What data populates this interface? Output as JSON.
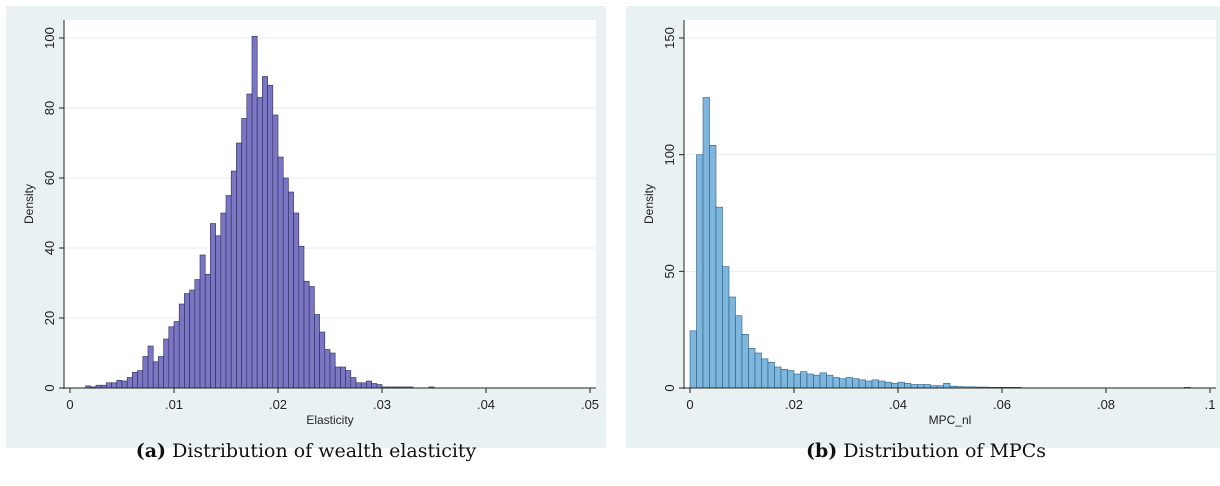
{
  "charts": [
    {
      "caption_label": "(a)",
      "caption_text": "Distribution of wealth elasticity",
      "bar_color": "#7b76c2",
      "bar_stroke": "#2c2a5c"
    },
    {
      "caption_label": "(b)",
      "caption_text": "Distribution of MPCs",
      "bar_color": "#7eb6de",
      "bar_stroke": "#2b5e80"
    }
  ],
  "chart_data": [
    {
      "type": "bar",
      "title": "",
      "xlabel": "Elasticity",
      "ylabel": "Density",
      "xlim": [
        0,
        0.05
      ],
      "ylim": [
        0,
        100
      ],
      "xticks": [
        0,
        0.01,
        0.02,
        0.03,
        0.04,
        0.05
      ],
      "xtick_labels": [
        "0",
        ".01",
        ".02",
        ".03",
        ".04",
        ".05"
      ],
      "yticks": [
        0,
        20,
        40,
        60,
        80,
        100
      ],
      "ytick_labels": [
        "0",
        "20",
        "40",
        "60",
        "80",
        "100"
      ],
      "grid": true,
      "bin_start": 0.0015,
      "bin_width": 0.0005,
      "values": [
        0.6,
        0.3,
        0.8,
        0.8,
        1.5,
        1.5,
        2.2,
        2.0,
        3.0,
        4.5,
        5.0,
        9.0,
        12.0,
        7.5,
        9.0,
        14.0,
        17.5,
        19.0,
        24.0,
        27.0,
        28.0,
        31.0,
        38.0,
        32.5,
        47.0,
        43.5,
        50.0,
        55.0,
        62.0,
        70.0,
        77.0,
        84.0,
        100.5,
        83.0,
        89.0,
        86.5,
        78.0,
        66.0,
        60.0,
        56.0,
        50.0,
        40.5,
        30.5,
        29.0,
        21.0,
        16.0,
        11.0,
        10.0,
        6.0,
        6.0,
        5.0,
        3.0,
        1.5,
        1.5,
        2.0,
        1.3,
        1.0,
        0.3,
        0.3,
        0.3,
        0.3,
        0.3,
        0.3,
        0,
        0,
        0,
        0.3
      ]
    },
    {
      "type": "bar",
      "title": "",
      "xlabel": "MPC_nl",
      "ylabel": "Density",
      "xlim": [
        0,
        0.1
      ],
      "ylim": [
        0,
        150
      ],
      "xticks": [
        0,
        0.02,
        0.04,
        0.06,
        0.08,
        0.1
      ],
      "xtick_labels": [
        "0",
        ".02",
        ".04",
        ".06",
        ".08",
        ".1"
      ],
      "yticks": [
        0,
        50,
        100,
        150
      ],
      "ytick_labels": [
        "0",
        "50",
        "100",
        "150"
      ],
      "grid": true,
      "bin_start": 0,
      "bin_width": 0.00125,
      "values": [
        24.5,
        100.0,
        124.5,
        104.0,
        77.5,
        52.0,
        39.0,
        31.0,
        23.0,
        17.0,
        15.0,
        12.5,
        11.0,
        9.0,
        8.0,
        7.5,
        6.0,
        7.0,
        6.0,
        5.5,
        6.5,
        5.5,
        4.5,
        4.0,
        4.5,
        4.0,
        3.5,
        3.0,
        3.5,
        3.0,
        2.5,
        2.0,
        2.5,
        2.0,
        1.5,
        1.5,
        1.5,
        1.0,
        1.0,
        2.0,
        0.8,
        0.6,
        0.5,
        0.5,
        0.4,
        0.4,
        0.3,
        0.3,
        0.3,
        0.3,
        0.3,
        0,
        0,
        0,
        0,
        0,
        0,
        0,
        0,
        0,
        0,
        0,
        0,
        0,
        0,
        0,
        0,
        0,
        0,
        0,
        0,
        0,
        0,
        0,
        0,
        0,
        0.3
      ]
    }
  ]
}
